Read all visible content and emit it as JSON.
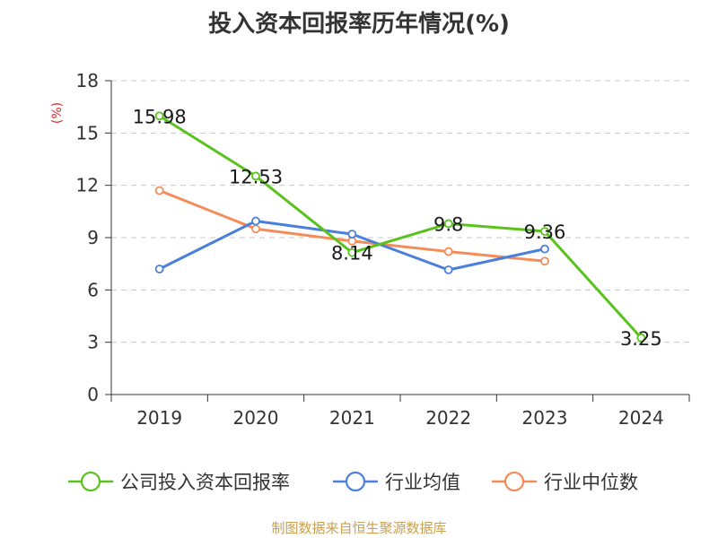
{
  "chart_data": {
    "type": "line",
    "title": "投入资本回报率历年情况(%)",
    "ylabel": "(%)",
    "ylim": [
      0,
      18
    ],
    "yticks": [
      0,
      3,
      6,
      9,
      12,
      15,
      18
    ],
    "grid": true,
    "legend_position": "bottom",
    "categories": [
      "2019",
      "2020",
      "2021",
      "2022",
      "2023",
      "2024"
    ],
    "series": [
      {
        "name": "公司投入资本回报率",
        "color": "#5ac21d",
        "values": [
          15.98,
          12.53,
          8.14,
          9.8,
          9.36,
          3.25
        ],
        "data_labels": [
          "15.98",
          "12.53",
          "8.14",
          "9.8",
          "9.36",
          "3.25"
        ]
      },
      {
        "name": "行业均值",
        "color": "#4a7fdb",
        "values": [
          7.2,
          9.95,
          9.2,
          7.15,
          8.35,
          null
        ]
      },
      {
        "name": "行业中位数",
        "color": "#f48c5a",
        "values": [
          11.7,
          9.5,
          8.8,
          8.2,
          7.65,
          null
        ]
      }
    ]
  },
  "source": "制图数据来自恒生聚源数据库"
}
